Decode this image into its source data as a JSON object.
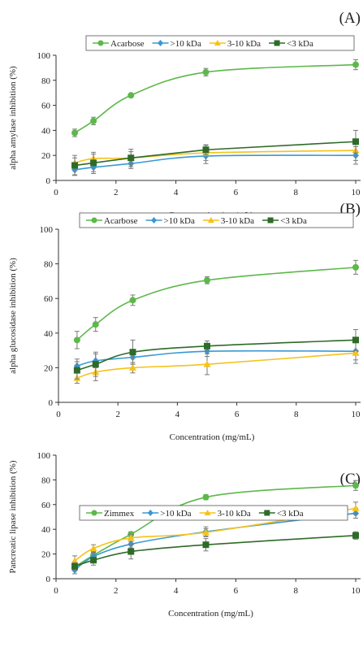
{
  "chart_data": [
    {
      "type": "line",
      "panel_label": "(A)",
      "xlabel": "Concentration (mg/mL)",
      "ylabel": "alpha amylase inhibition (%)",
      "xlim": [
        0,
        10
      ],
      "ylim": [
        0,
        100
      ],
      "xticks": [
        0,
        2,
        4,
        6,
        8,
        10
      ],
      "yticks": [
        0,
        20,
        40,
        60,
        80,
        100
      ],
      "grid": false,
      "legend_position": "top-right",
      "x": [
        0.625,
        1.25,
        2.5,
        5,
        10
      ],
      "series": [
        {
          "name": "Acarbose",
          "color": "#5cb84a",
          "marker": "circle",
          "smooth": true,
          "values": [
            38,
            47.5,
            68,
            86.5,
            92.5
          ],
          "errors": [
            3,
            3,
            1,
            3,
            4
          ]
        },
        {
          "name": ">10 kDa",
          "color": "#3a98d4",
          "marker": "diamond",
          "smooth": true,
          "values": [
            8.5,
            10.5,
            13.5,
            19.5,
            20
          ],
          "errors": [
            4,
            5,
            4,
            6,
            7
          ]
        },
        {
          "name": "3-10 kDa",
          "color": "#f5c21b",
          "marker": "triangle",
          "smooth": true,
          "values": [
            14,
            17.5,
            18,
            22,
            24
          ],
          "errors": [
            4,
            5,
            5,
            6,
            8
          ]
        },
        {
          "name": "<3 kDa",
          "color": "#2e6b28",
          "marker": "square",
          "smooth": false,
          "values": [
            12,
            14,
            18,
            24.5,
            31
          ],
          "errors": [
            8,
            7,
            7,
            4,
            9
          ]
        }
      ]
    },
    {
      "type": "line",
      "panel_label": "(B)",
      "xlabel": "Concentration (mg/mL)",
      "ylabel": "alpha glucosidase inhibition (%)",
      "xlim": [
        0,
        10
      ],
      "ylim": [
        0,
        100
      ],
      "xticks": [
        0,
        2,
        4,
        6,
        8,
        10
      ],
      "yticks": [
        0,
        20,
        40,
        60,
        80,
        100
      ],
      "grid": false,
      "legend_position": "top-right",
      "x": [
        0.625,
        1.25,
        2.5,
        5,
        10
      ],
      "series": [
        {
          "name": "Acarbose",
          "color": "#5cb84a",
          "marker": "circle",
          "smooth": true,
          "values": [
            36,
            45,
            59,
            70.5,
            78
          ],
          "errors": [
            5,
            4,
            3,
            2,
            4
          ]
        },
        {
          "name": ">10 kDa",
          "color": "#3a98d4",
          "marker": "diamond",
          "smooth": true,
          "values": [
            21,
            24,
            26,
            29.5,
            29.5
          ],
          "errors": [
            4,
            4,
            4,
            3,
            5
          ]
        },
        {
          "name": "3-10 kDa",
          "color": "#f5c21b",
          "marker": "triangle",
          "smooth": true,
          "values": [
            14,
            17.5,
            20,
            22,
            28.5
          ],
          "errors": [
            3,
            5,
            3,
            6,
            6
          ]
        },
        {
          "name": "<3 kDa",
          "color": "#2e6b28",
          "marker": "square",
          "smooth": true,
          "values": [
            18.5,
            22,
            29,
            32.5,
            36
          ],
          "errors": [
            5,
            7,
            7,
            3,
            6
          ]
        }
      ]
    },
    {
      "type": "line",
      "panel_label": "(C)",
      "xlabel": "Concentration (mg/mL)",
      "ylabel": "Pancreatic lipase inhibition (%)",
      "xlim": [
        0,
        10
      ],
      "ylim": [
        0,
        100
      ],
      "xticks": [
        0,
        2,
        4,
        6,
        8,
        10
      ],
      "yticks": [
        0,
        20,
        40,
        60,
        80,
        100
      ],
      "grid": false,
      "legend_position": "top-right",
      "x": [
        0.625,
        1.25,
        2.5,
        5,
        10
      ],
      "series": [
        {
          "name": "Zimmex",
          "color": "#5cb84a",
          "marker": "circle",
          "smooth": true,
          "values": [
            9.5,
            19,
            36,
            66,
            75.5
          ],
          "errors": [
            3,
            3,
            2,
            2,
            4
          ]
        },
        {
          "name": ">10 kDa",
          "color": "#3a98d4",
          "marker": "diamond",
          "smooth": true,
          "values": [
            7,
            18,
            28,
            38,
            53
          ],
          "errors": [
            3,
            3,
            3,
            4,
            4
          ]
        },
        {
          "name": "3-10 kDa",
          "color": "#f5c21b",
          "marker": "triangle",
          "smooth": true,
          "values": [
            14.5,
            24.5,
            33,
            37.5,
            57
          ],
          "errors": [
            4,
            3,
            3,
            3,
            5
          ]
        },
        {
          "name": "<3 kDa",
          "color": "#2e6b28",
          "marker": "square",
          "smooth": true,
          "values": [
            10,
            15,
            22,
            27.5,
            35
          ],
          "errors": [
            3,
            4,
            6,
            5,
            3
          ]
        }
      ]
    }
  ]
}
